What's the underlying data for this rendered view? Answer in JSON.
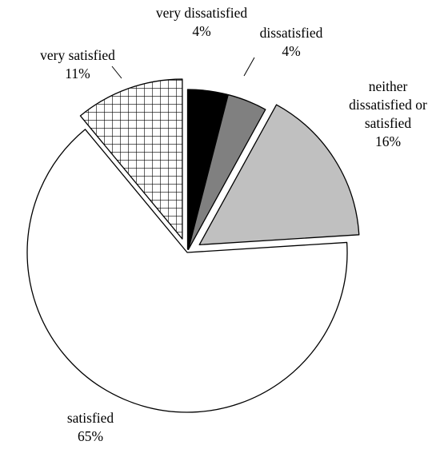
{
  "chart_data": {
    "type": "pie",
    "exploded": true,
    "title": "",
    "slices": [
      {
        "category": "very dissatisfied",
        "value": 4,
        "value_label": "4%",
        "fill": "#000000",
        "pattern": "solid"
      },
      {
        "category": "dissatisfied",
        "value": 4,
        "value_label": "4%",
        "fill": "#808080",
        "pattern": "solid"
      },
      {
        "category_lines": [
          "neither",
          "dissatisfied or",
          "satisfied"
        ],
        "category": "neither dissatisfied or satisfied",
        "value": 16,
        "value_label": "16%",
        "fill": "#c0c0c0",
        "pattern": "solid"
      },
      {
        "category": "satisfied",
        "value": 65,
        "value_label": "65%",
        "fill": "#ffffff",
        "pattern": "solid"
      },
      {
        "category": "very satisfied",
        "value": 11,
        "value_label": "11%",
        "fill": "#ffffff",
        "pattern": "grid"
      }
    ],
    "legend": "none",
    "label_position": "outside"
  }
}
